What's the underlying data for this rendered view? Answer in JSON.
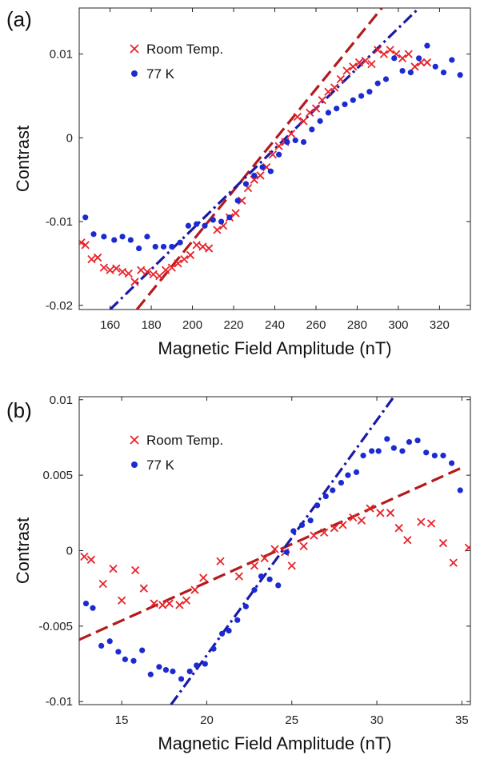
{
  "chart_data": [
    {
      "type": "scatter",
      "panel_label": "(a)",
      "xlabel": "Magnetic Field Amplitude (nT)",
      "ylabel": "Contrast",
      "xlim": [
        145,
        335
      ],
      "ylim": [
        -0.0205,
        0.0155
      ],
      "xticks": [
        160,
        180,
        200,
        220,
        240,
        260,
        280,
        300,
        320
      ],
      "yticks": [
        -0.02,
        -0.01,
        0,
        0.01
      ],
      "ytick_labels": [
        "-0.02",
        "-0.01",
        "0",
        "0.01"
      ],
      "legend_position": "top-left",
      "series": [
        {
          "name": "Room Temp.",
          "marker": "x",
          "color": "#e8232a",
          "x": [
            146,
            148,
            151,
            154,
            157,
            160,
            163,
            166,
            169,
            172,
            175,
            178,
            181,
            184,
            187,
            190,
            193,
            196,
            199,
            202,
            205,
            208,
            212,
            215,
            218,
            221,
            224,
            227,
            230,
            233,
            236,
            239,
            242,
            245,
            248,
            251,
            254,
            257,
            260,
            263,
            266,
            269,
            272,
            275,
            278,
            281,
            284,
            287,
            290,
            293,
            296,
            299,
            302,
            305,
            308,
            311,
            314
          ],
          "y": [
            -0.0125,
            -0.0128,
            -0.0145,
            -0.0143,
            -0.0155,
            -0.0158,
            -0.0156,
            -0.016,
            -0.0162,
            -0.0172,
            -0.0158,
            -0.016,
            -0.0163,
            -0.0165,
            -0.0158,
            -0.0155,
            -0.015,
            -0.0145,
            -0.014,
            -0.0128,
            -0.013,
            -0.0132,
            -0.011,
            -0.0105,
            -0.0095,
            -0.009,
            -0.0075,
            -0.006,
            -0.005,
            -0.0045,
            -0.0035,
            -0.002,
            -0.001,
            -0.0005,
            0.0005,
            0.0025,
            0.002,
            0.003,
            0.0035,
            0.0045,
            0.0055,
            0.006,
            0.007,
            0.008,
            0.0085,
            0.009,
            0.0092,
            0.0088,
            0.0105,
            0.01,
            0.0105,
            0.01,
            0.0095,
            0.01,
            0.0085,
            0.009,
            0.009
          ]
        },
        {
          "name": "77 K",
          "marker": "circle",
          "color": "#1b2bd1",
          "x": [
            148,
            152,
            157,
            162,
            166,
            170,
            174,
            178,
            182,
            186,
            190,
            194,
            198,
            202,
            206,
            210,
            214,
            218,
            222,
            226,
            230,
            234,
            238,
            242,
            246,
            250,
            254,
            258,
            262,
            266,
            270,
            274,
            278,
            282,
            286,
            290,
            294,
            298,
            302,
            306,
            310,
            314,
            318,
            322,
            326,
            330
          ],
          "y": [
            -0.0095,
            -0.0115,
            -0.0118,
            -0.0122,
            -0.0118,
            -0.0122,
            -0.0132,
            -0.0118,
            -0.013,
            -0.013,
            -0.013,
            -0.0125,
            -0.0105,
            -0.0103,
            -0.0105,
            -0.0098,
            -0.01,
            -0.0095,
            -0.0075,
            -0.0055,
            -0.0045,
            -0.0035,
            -0.004,
            -0.002,
            -0.0005,
            -0.0003,
            -0.0005,
            0.001,
            0.002,
            0.003,
            0.0035,
            0.004,
            0.0045,
            0.005,
            0.0055,
            0.0065,
            0.007,
            0.0095,
            0.008,
            0.0078,
            0.0095,
            0.011,
            0.0085,
            0.0078,
            0.0093,
            0.0075
          ]
        },
        {
          "name": "Room Temp. fit",
          "line_style": "dashed",
          "color": "#b31b1b",
          "x": [
            173,
            292
          ],
          "y": [
            -0.0205,
            0.0155
          ]
        },
        {
          "name": "77 K fit",
          "line_style": "dash-dot",
          "color": "#1a1aa6",
          "x": [
            160,
            310
          ],
          "y": [
            -0.0205,
            0.0155
          ]
        }
      ]
    },
    {
      "type": "scatter",
      "panel_label": "(b)",
      "xlabel": "Magnetic Field Amplitude (nT)",
      "ylabel": "Contrast",
      "xlim": [
        12.5,
        35.5
      ],
      "ylim": [
        -0.0102,
        0.0102
      ],
      "xticks": [
        15,
        20,
        25,
        30,
        35
      ],
      "yticks": [
        -0.01,
        -0.005,
        0,
        0.005,
        0.01
      ],
      "ytick_labels": [
        "-0.01",
        "-0.005",
        "0",
        "0.005",
        "0.01"
      ],
      "legend_position": "top-left",
      "series": [
        {
          "name": "Room Temp.",
          "marker": "x",
          "color": "#e8232a",
          "x": [
            12.8,
            13.2,
            13.9,
            14.5,
            15.0,
            15.8,
            16.3,
            16.9,
            17.4,
            17.8,
            18.4,
            18.8,
            19.3,
            19.8,
            20.8,
            21.9,
            22.8,
            23.4,
            24.0,
            24.6,
            25.0,
            25.7,
            26.3,
            26.9,
            27.5,
            28.0,
            28.6,
            29.1,
            29.6,
            30.2,
            30.8,
            31.3,
            31.8,
            32.6,
            33.2,
            33.9,
            34.5,
            35.4
          ],
          "y": [
            -0.0004,
            -0.0006,
            -0.0022,
            -0.0012,
            -0.0033,
            -0.0013,
            -0.0025,
            -0.0035,
            -0.0036,
            -0.0035,
            -0.0036,
            -0.0033,
            -0.0026,
            -0.0018,
            -0.0007,
            -0.0017,
            -0.001,
            -0.0005,
            0.0001,
            -0.0001,
            -0.001,
            0.0003,
            0.001,
            0.0012,
            0.0015,
            0.0017,
            0.0022,
            0.002,
            0.0028,
            0.0025,
            0.0025,
            0.0015,
            0.0007,
            0.0019,
            0.0018,
            0.0005,
            -0.0008,
            0.0002
          ]
        },
        {
          "name": "77 K",
          "marker": "circle",
          "color": "#1b2bd1",
          "x": [
            12.9,
            13.3,
            13.8,
            14.3,
            14.8,
            15.2,
            15.7,
            16.2,
            16.7,
            17.2,
            17.6,
            18.0,
            18.5,
            19.0,
            19.4,
            19.9,
            20.4,
            20.9,
            21.3,
            21.8,
            22.3,
            22.8,
            23.2,
            23.7,
            24.2,
            24.7,
            25.1,
            25.6,
            26.1,
            26.5,
            27.0,
            27.4,
            27.9,
            28.3,
            28.8,
            29.2,
            29.7,
            30.1,
            30.6,
            31.0,
            31.5,
            31.9,
            32.4,
            32.9,
            33.4,
            33.9,
            34.4,
            34.9
          ],
          "y": [
            -0.0035,
            -0.0038,
            -0.0063,
            -0.006,
            -0.0067,
            -0.0072,
            -0.0073,
            -0.0066,
            -0.0082,
            -0.0077,
            -0.0079,
            -0.008,
            -0.0085,
            -0.008,
            -0.0076,
            -0.0075,
            -0.0065,
            -0.0055,
            -0.0053,
            -0.0046,
            -0.0037,
            -0.0026,
            -0.0017,
            -0.0019,
            -0.0023,
            -0.0001,
            0.0013,
            0.0017,
            0.002,
            0.003,
            0.0036,
            0.004,
            0.0045,
            0.005,
            0.0052,
            0.0063,
            0.0066,
            0.0066,
            0.0074,
            0.0068,
            0.0066,
            0.0072,
            0.0073,
            0.0065,
            0.0063,
            0.0063,
            0.0058,
            0.004
          ]
        },
        {
          "name": "Room Temp. fit",
          "line_style": "dashed",
          "color": "#b31b1b",
          "x": [
            12.5,
            35.0
          ],
          "y": [
            -0.0059,
            0.0055
          ]
        },
        {
          "name": "77 K fit",
          "line_style": "dash-dot",
          "color": "#1a1aa6",
          "x": [
            17.9,
            31.0
          ],
          "y": [
            -0.0102,
            0.0102
          ]
        }
      ]
    }
  ]
}
